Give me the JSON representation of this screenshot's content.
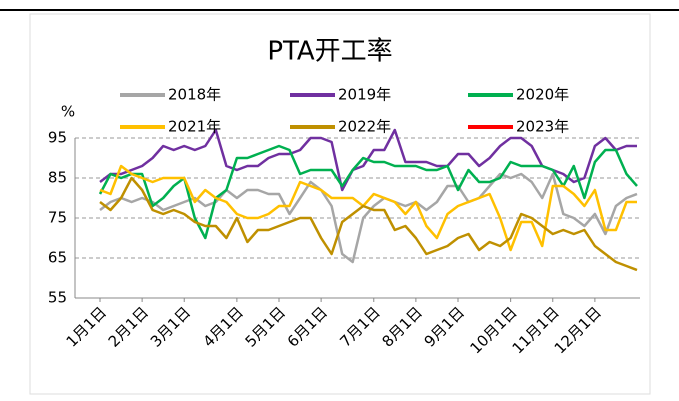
{
  "chart_data": {
    "type": "line",
    "title": "PTA开工率",
    "ylabel": "%",
    "categories": [
      "1月1日",
      null,
      null,
      null,
      "2月1日",
      null,
      null,
      null,
      "3月1日",
      null,
      null,
      null,
      null,
      "4月1日",
      null,
      null,
      null,
      "5月1日",
      null,
      null,
      null,
      "6月1日",
      null,
      null,
      null,
      null,
      "7月1日",
      null,
      null,
      null,
      "8月1日",
      null,
      null,
      null,
      "9月1日",
      null,
      null,
      null,
      null,
      "10月1日",
      null,
      null,
      null,
      "11月1日",
      null,
      null,
      null,
      "12月1日",
      null,
      null,
      null,
      null
    ],
    "series": [
      {
        "name": "2018年",
        "color": "#a6a6a6",
        "values": [
          77,
          79,
          80,
          79,
          80,
          79,
          77,
          78,
          79,
          80,
          78,
          79,
          82,
          80,
          82,
          82,
          81,
          81,
          76,
          80,
          84,
          82,
          78,
          66,
          64,
          75,
          78,
          80,
          79,
          78,
          79,
          77,
          79,
          83,
          83,
          79,
          80,
          83,
          86,
          85,
          86,
          84,
          80,
          86,
          76,
          75,
          73,
          76,
          71,
          78,
          80,
          81
        ]
      },
      {
        "name": "2019年",
        "color": "#7030a0",
        "values": [
          84,
          86,
          86,
          87,
          88,
          90,
          93,
          92,
          93,
          92,
          93,
          97,
          88,
          87,
          88,
          88,
          90,
          91,
          91,
          92,
          95,
          95,
          94,
          82,
          87,
          88,
          92,
          92,
          97,
          89,
          89,
          89,
          88,
          88,
          91,
          91,
          88,
          90,
          93,
          95,
          95,
          93,
          88,
          87,
          86,
          84,
          85,
          93,
          95,
          92,
          93,
          93
        ]
      },
      {
        "name": "2020年",
        "color": "#00b050",
        "values": [
          81,
          86,
          85,
          86,
          86,
          78,
          80,
          83,
          85,
          75,
          70,
          80,
          82,
          90,
          90,
          91,
          92,
          93,
          92,
          86,
          87,
          87,
          87,
          83,
          87,
          90,
          89,
          89,
          88,
          88,
          88,
          87,
          87,
          88,
          82,
          87,
          84,
          84,
          85,
          89,
          88,
          88,
          88,
          87,
          83,
          88,
          80,
          89,
          92,
          92,
          86,
          83
        ]
      },
      {
        "name": "2021年",
        "color": "#ffc000",
        "values": [
          82,
          81,
          88,
          86,
          85,
          84,
          85,
          85,
          85,
          79,
          82,
          80,
          79,
          76,
          75,
          75,
          76,
          78,
          78,
          84,
          83,
          82,
          80,
          80,
          80,
          78,
          81,
          80,
          79,
          76,
          79,
          73,
          70,
          76,
          78,
          79,
          80,
          81,
          75,
          67,
          74,
          74,
          68,
          83,
          83,
          81,
          78,
          82,
          72,
          72,
          79,
          79
        ]
      },
      {
        "name": "2022年",
        "color": "#bf9000",
        "values": [
          79,
          77,
          80,
          85,
          82,
          77,
          76,
          77,
          76,
          74,
          73,
          73,
          70,
          75,
          69,
          72,
          72,
          73,
          74,
          75,
          75,
          70,
          66,
          74,
          76,
          78,
          77,
          77,
          72,
          73,
          70,
          66,
          67,
          68,
          70,
          71,
          67,
          69,
          68,
          70,
          76,
          75,
          73,
          71,
          72,
          71,
          72,
          68,
          66,
          64,
          63,
          62
        ]
      },
      {
        "name": "2023年",
        "color": "#ff0000",
        "values": [
          null,
          null,
          null,
          null,
          null,
          null,
          null,
          null,
          null,
          null,
          null,
          null,
          null,
          null,
          null,
          null,
          null,
          null,
          null,
          null,
          null,
          null,
          null,
          null,
          null,
          null,
          null,
          null,
          null,
          null,
          null,
          null,
          null,
          null,
          null,
          null,
          null,
          null,
          null,
          null,
          null,
          null,
          null,
          null,
          null,
          null,
          null,
          null,
          null,
          null,
          null,
          null
        ]
      }
    ],
    "ylim": [
      55,
      95
    ],
    "yticks": [
      55,
      65,
      75,
      85,
      95
    ],
    "grid": true
  }
}
